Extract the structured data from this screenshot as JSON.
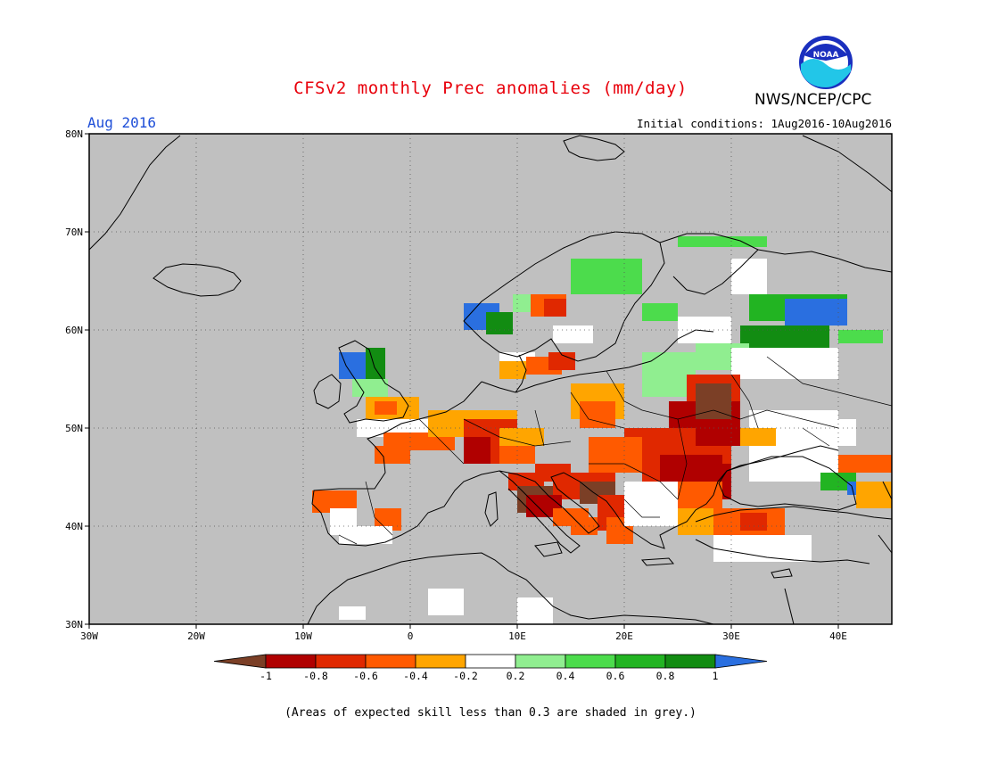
{
  "header": {
    "title": "CFSv2 monthly Prec anomalies (mm/day)",
    "organization": "NWS/NCEP/CPC",
    "logo_text": "NOAA",
    "month": "Aug 2016",
    "initial_conditions": "Initial conditions: 1Aug2016-10Aug2016"
  },
  "map": {
    "extent": {
      "lon": [
        -30,
        45
      ],
      "lat": [
        30,
        80
      ]
    },
    "background_color": "#c0c0c0",
    "lat_labels": [
      "80N",
      "70N",
      "60N",
      "50N",
      "40N",
      "30N"
    ],
    "lon_labels": [
      "30W",
      "20W",
      "10W",
      "0",
      "10E",
      "20E",
      "30E",
      "40E"
    ],
    "grid": "dotted"
  },
  "colorbar": {
    "labels": [
      "-1",
      "-0.8",
      "-0.6",
      "-0.4",
      "-0.2",
      "0.2",
      "0.4",
      "0.6",
      "0.8",
      "1"
    ],
    "colors": [
      "#7b3f26",
      "#b00000",
      "#e02800",
      "#ff5a00",
      "#ffa500",
      "#ffffff",
      "#90ee90",
      "#4cdc4c",
      "#22b422",
      "#128c12",
      "#2a6fe0"
    ]
  },
  "footer": {
    "note": "(Areas of expected skill less than 0.3 are shaded in grey.)"
  }
}
